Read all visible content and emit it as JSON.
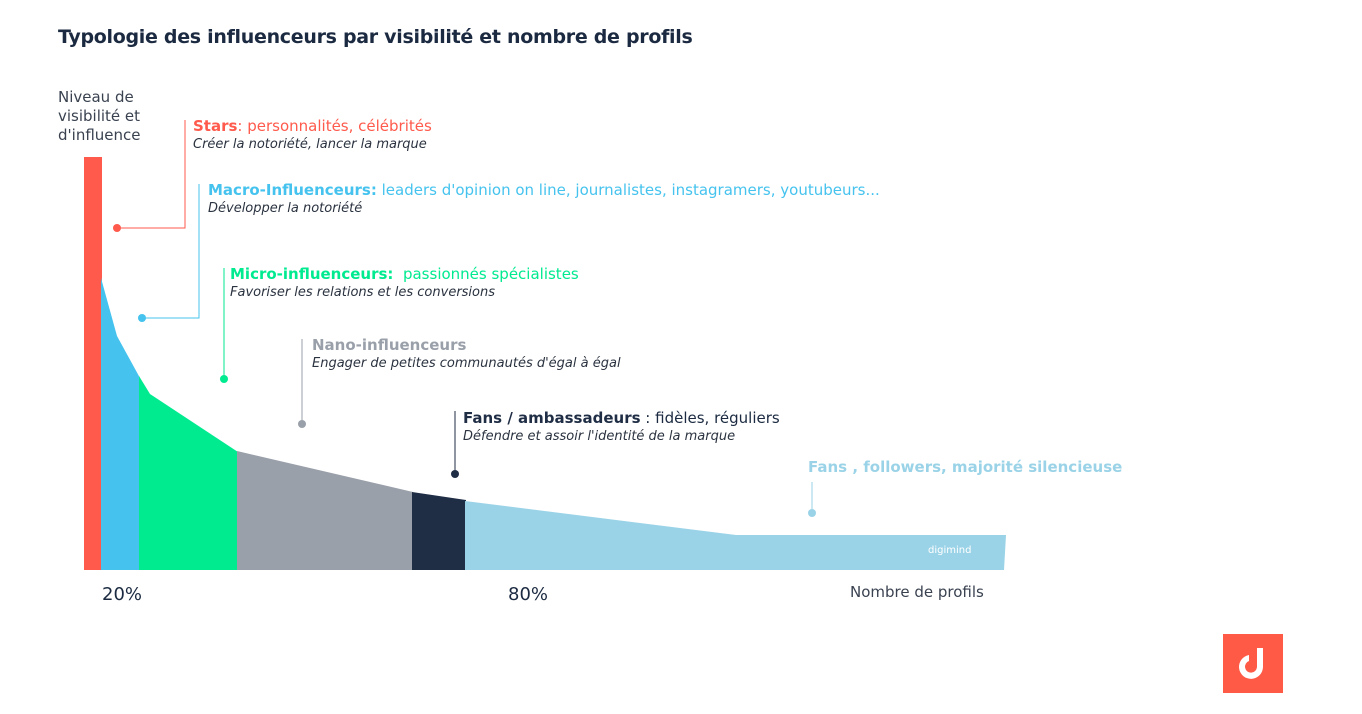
{
  "title": "Typologie des influenceurs par visibilité et nombre de profils",
  "axes": {
    "y_label": "Niveau de visibilité et d'influence",
    "x_label": "Nombre de profils",
    "x_ticks": [
      "20%",
      "80%"
    ]
  },
  "watermark": "digimind",
  "chart_data": {
    "type": "area",
    "title": "Typologie des influenceurs par visibilité et nombre de profils",
    "xlabel": "Nombre de profils",
    "ylabel": "Niveau de visibilité et d'influence",
    "x_ticks": [
      "20%",
      "80%"
    ],
    "segments": [
      {
        "name": "Stars",
        "heading": "Stars",
        "description": ": personnalités, célébrités",
        "objective": "Créer la notoriété, lancer la marque",
        "color": "#ff5a4c"
      },
      {
        "name": "Macro-Influenceurs",
        "heading": "Macro-Influenceurs:",
        "description": " leaders d'opinion on line, journalistes, instagramers, youtubeurs...",
        "objective": "Développer la notoriété",
        "color": "#45c3ee"
      },
      {
        "name": "Micro-influenceurs",
        "heading": "Micro-influenceurs:",
        "description": "  passionnés spécialistes",
        "objective": "Favoriser les relations et les conversions",
        "color": "#00ea90"
      },
      {
        "name": "Nano-influenceurs",
        "heading": "Nano-influenceurs",
        "description": "",
        "objective": "Engager de petites communautés d'égal à égal",
        "color": "#9aa0aa"
      },
      {
        "name": "Fans / ambassadeurs",
        "heading": "Fans / ambassadeurs",
        "description": " : fidèles, réguliers",
        "objective": "Défendre et assoir l'identité de la marque",
        "color": "#1f2d45"
      },
      {
        "name": "Fans , followers, majorité silencieuse",
        "heading": "Fans , followers, majorité silencieuse",
        "description": "",
        "objective": "",
        "color": "#9ad3e7"
      }
    ]
  }
}
